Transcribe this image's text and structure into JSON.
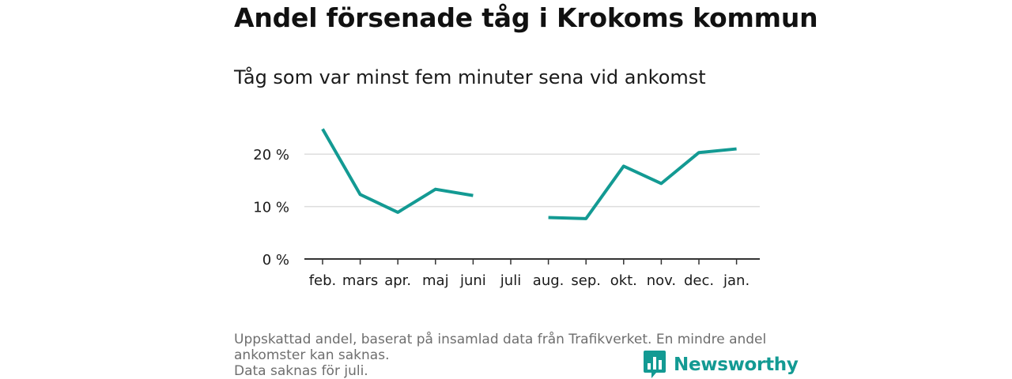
{
  "header": {
    "title": "Andel försenade tåg i Krokoms kommun",
    "subtitle": "Tåg som var minst fem minuter sena vid ankomst"
  },
  "footnote": {
    "line1": "Uppskattad andel, baserat på insamlad data från Trafikverket. En mindre andel",
    "line2": "ankomster kan saknas.",
    "line3": "Data saknas för juli."
  },
  "brand": {
    "name": "Newsworthy",
    "color": "#139a93",
    "icon": "bar-chart-speech-bubble-icon"
  },
  "chart_data": {
    "type": "line",
    "title": "Andel försenade tåg i Krokoms kommun",
    "subtitle": "Tåg som var minst fem minuter sena vid ankomst",
    "categories": [
      "feb.",
      "mars",
      "apr.",
      "maj",
      "juni",
      "juli",
      "aug.",
      "sep.",
      "okt.",
      "nov.",
      "dec.",
      "jan."
    ],
    "series": [
      {
        "values": [
          24.8,
          12.3,
          8.9,
          13.3,
          12.1,
          null,
          7.9,
          7.7,
          17.7,
          14.4,
          20.3,
          21.0
        ],
        "color": "#139a93"
      }
    ],
    "yticks": [
      0,
      10,
      20
    ],
    "ytick_labels": [
      "0 %",
      "10 %",
      "20 %"
    ],
    "ylim": [
      0,
      25
    ],
    "xlabel": "",
    "ylabel": "",
    "grid": true,
    "legend": false
  }
}
